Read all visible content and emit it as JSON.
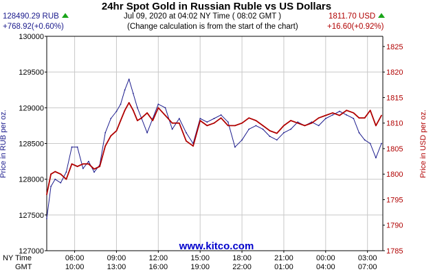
{
  "header": {
    "title": "24hr Spot Gold in Russian Ruble vs US Dollars",
    "rub_price": "128490.29 RUB",
    "rub_change": "+768.92(+0.60%)",
    "datetime": "Jul 09, 2020 at 04:02 NY Time ( 08:02 GMT )",
    "note": "(Change calculation is from the start of the chart)",
    "usd_price": "1811.70 USD",
    "usd_change": "+16.60(+0.92%)"
  },
  "watermark": "www.kitco.com",
  "colors": {
    "rub": "#1a1a8c",
    "usd": "#b00000",
    "grid": "#c8c8c8",
    "up_arrow": "#1aa51a"
  },
  "chart_data": {
    "type": "line",
    "title": "24hr Spot Gold in Russian Ruble vs US Dollars",
    "grid": true,
    "row_labels": [
      "NY Time",
      "GMT"
    ],
    "x_ticks_ny": [
      "06:00",
      "09:00",
      "12:00",
      "15:00",
      "18:00",
      "21:00",
      "00:00",
      "03:00"
    ],
    "x_ticks_gmt": [
      "10:00",
      "13:00",
      "16:00",
      "19:00",
      "22:00",
      "01:00",
      "04:00",
      "07:00"
    ],
    "x_tick_hours": [
      2,
      5,
      8,
      11,
      14,
      17,
      20,
      23
    ],
    "xlim_hours": [
      0,
      24.1
    ],
    "y_left": {
      "label": "Price in RUB per oz.",
      "range": [
        127000,
        130000
      ],
      "ticks": [
        "127000",
        "127500",
        "128000",
        "128500",
        "129000",
        "129500",
        "130000"
      ]
    },
    "y_right": {
      "label": "Price in USD per oz.",
      "range": [
        1785,
        1827
      ],
      "ticks": [
        "1785",
        "1790",
        "1795",
        "1800",
        "1805",
        "1810",
        "1815",
        "1820",
        "1825"
      ]
    },
    "series": [
      {
        "name": "RUB",
        "axis": "left",
        "x": [
          0,
          0.3,
          0.6,
          1,
          1.4,
          1.8,
          2.2,
          2.6,
          3,
          3.4,
          3.8,
          4.2,
          4.6,
          5,
          5.3,
          5.6,
          5.9,
          6.2,
          6.5,
          6.8,
          7.2,
          7.6,
          8,
          8.5,
          9,
          9.5,
          10,
          10.5,
          11,
          11.5,
          12,
          12.5,
          13,
          13.5,
          14,
          14.5,
          15,
          15.5,
          16,
          16.5,
          17,
          17.5,
          18,
          18.5,
          19,
          19.5,
          20,
          20.5,
          21,
          21.5,
          22,
          22.4,
          22.8,
          23.2,
          23.6,
          24
        ],
        "y": [
          127450,
          127900,
          128000,
          127950,
          128100,
          128450,
          128450,
          128150,
          128250,
          128100,
          128200,
          128650,
          128850,
          128950,
          129050,
          129250,
          129400,
          129200,
          129000,
          128850,
          128650,
          128850,
          129050,
          129000,
          128700,
          128850,
          128650,
          128500,
          128850,
          128800,
          128850,
          128900,
          128800,
          128450,
          128550,
          128700,
          128750,
          128700,
          128600,
          128550,
          128650,
          128700,
          128800,
          128750,
          128800,
          128750,
          128850,
          128900,
          128950,
          128900,
          128850,
          128650,
          128550,
          128500,
          128300,
          128500
        ]
      },
      {
        "name": "USD",
        "axis": "right",
        "x": [
          0,
          0.3,
          0.6,
          1,
          1.4,
          1.8,
          2.2,
          2.6,
          3,
          3.4,
          3.8,
          4.2,
          4.6,
          5,
          5.3,
          5.6,
          5.9,
          6.2,
          6.5,
          6.8,
          7.2,
          7.6,
          8,
          8.5,
          9,
          9.5,
          10,
          10.5,
          11,
          11.5,
          12,
          12.5,
          13,
          13.5,
          14,
          14.5,
          15,
          15.5,
          16,
          16.5,
          17,
          17.5,
          18,
          18.5,
          19,
          19.5,
          20,
          20.5,
          21,
          21.5,
          22,
          22.4,
          22.8,
          23.2,
          23.6,
          24
        ],
        "y": [
          1796,
          1800,
          1800.5,
          1800,
          1799,
          1802,
          1801.5,
          1802,
          1802,
          1801,
          1801.5,
          1805.5,
          1807.5,
          1808.5,
          1810.5,
          1812.5,
          1814,
          1812.5,
          1810.5,
          1811,
          1812,
          1810.5,
          1813,
          1811.5,
          1810,
          1810,
          1806.5,
          1805.5,
          1810.5,
          1809.5,
          1810,
          1811,
          1809.5,
          1809.5,
          1810,
          1811,
          1810.5,
          1809.5,
          1808.5,
          1808,
          1809.5,
          1810.5,
          1810,
          1809.5,
          1810,
          1811,
          1811.5,
          1812,
          1811.5,
          1812.5,
          1812,
          1811,
          1811,
          1812.5,
          1809.5,
          1811.5
        ]
      }
    ]
  }
}
